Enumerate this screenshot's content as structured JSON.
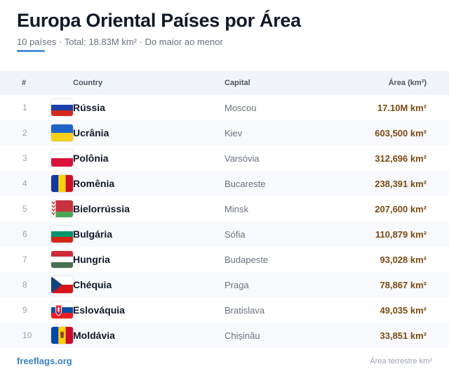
{
  "header": {
    "title": "Europa Oriental Países por Área",
    "subtitle": "10 países · Total: 18.83M km² · Do maior ao menor"
  },
  "table": {
    "columns": {
      "num": "#",
      "country": "Country",
      "capital": "Capital",
      "area": "Área (km²)"
    },
    "rows": [
      {
        "num": "1",
        "country": "Rússia",
        "capital": "Moscou",
        "area": "17.10M km²",
        "flag": "russia-flag-icon"
      },
      {
        "num": "2",
        "country": "Ucrânia",
        "capital": "Kiev",
        "area": "603,500 km²",
        "flag": "ukraine-flag-icon"
      },
      {
        "num": "3",
        "country": "Polônia",
        "capital": "Varsóvia",
        "area": "312,696 km²",
        "flag": "poland-flag-icon"
      },
      {
        "num": "4",
        "country": "Romênia",
        "capital": "Bucareste",
        "area": "238,391 km²",
        "flag": "romania-flag-icon"
      },
      {
        "num": "5",
        "country": "Bielorrússia",
        "capital": "Minsk",
        "area": "207,600 km²",
        "flag": "belarus-flag-icon"
      },
      {
        "num": "6",
        "country": "Bulgária",
        "capital": "Sófia",
        "area": "110,879 km²",
        "flag": "bulgaria-flag-icon"
      },
      {
        "num": "7",
        "country": "Hungria",
        "capital": "Budapeste",
        "area": "93,028 km²",
        "flag": "hungary-flag-icon"
      },
      {
        "num": "8",
        "country": "Chéquia",
        "capital": "Praga",
        "area": "78,867 km²",
        "flag": "czechia-flag-icon"
      },
      {
        "num": "9",
        "country": "Eslováquia",
        "capital": "Bratislava",
        "area": "49,035 km²",
        "flag": "slovakia-flag-icon"
      },
      {
        "num": "10",
        "country": "Moldávia",
        "capital": "Chișinău",
        "area": "33,851 km²",
        "flag": "moldova-flag-icon"
      }
    ]
  },
  "footer": {
    "brand": "freeflags.org",
    "note": "Área terrestre km²"
  },
  "colors": {
    "accent": "#4a90d9",
    "area_text": "#7a4a12",
    "header_bg": "#f1f5fa",
    "alt_row_bg": "#f7f9fc"
  }
}
